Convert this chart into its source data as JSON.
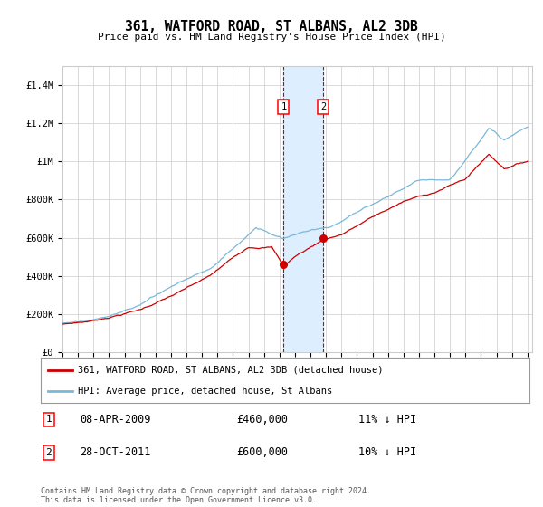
{
  "title": "361, WATFORD ROAD, ST ALBANS, AL2 3DB",
  "subtitle": "Price paid vs. HM Land Registry's House Price Index (HPI)",
  "x_start_year": 1995,
  "x_end_year": 2025,
  "y_min": 0,
  "y_max": 1500000,
  "y_ticks": [
    0,
    200000,
    400000,
    600000,
    800000,
    1000000,
    1200000,
    1400000
  ],
  "y_tick_labels": [
    "£0",
    "£200K",
    "£400K",
    "£600K",
    "£800K",
    "£1M",
    "£1.2M",
    "£1.4M"
  ],
  "sale1_date": "08-APR-2009",
  "sale1_price": 460000,
  "sale1_hpi_diff": "11% ↓ HPI",
  "sale1_year": 2009.27,
  "sale2_date": "28-OCT-2011",
  "sale2_price": 600000,
  "sale2_hpi_diff": "10% ↓ HPI",
  "sale2_year": 2011.83,
  "hpi_color": "#7ab8d9",
  "price_color": "#cc0000",
  "highlight_color": "#ddeeff",
  "dashed_color": "#cc0000",
  "legend_label_price": "361, WATFORD ROAD, ST ALBANS, AL2 3DB (detached house)",
  "legend_label_hpi": "HPI: Average price, detached house, St Albans",
  "footer": "Contains HM Land Registry data © Crown copyright and database right 2024.\nThis data is licensed under the Open Government Licence v3.0.",
  "background_color": "#ffffff",
  "grid_color": "#cccccc"
}
